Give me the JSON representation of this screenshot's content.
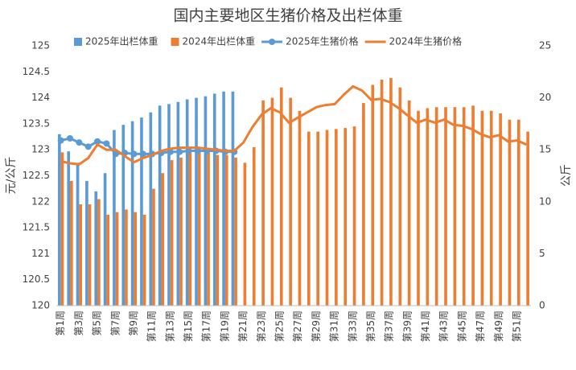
{
  "chart_data": {
    "type": "bar-line",
    "title": "国内主要地区生猪价格及出栏体重",
    "ylabel": "元/公斤",
    "y2label": "公斤",
    "categories": [
      "第1周",
      null,
      "第3周",
      null,
      "第5周",
      null,
      "第7周",
      null,
      "第9周",
      null,
      "第11周",
      null,
      "第13周",
      null,
      "第15周",
      null,
      "第17周",
      null,
      "第19周",
      null,
      "第21周",
      null,
      "第23周",
      null,
      "第25周",
      null,
      "第27周",
      null,
      "第29周",
      null,
      "第31周",
      null,
      "第33周",
      null,
      "第35周",
      null,
      "第37周",
      null,
      "第39周",
      null,
      "第41周",
      null,
      "第43周",
      null,
      "第45周",
      null,
      "第47周",
      null,
      "第49周",
      null,
      "第51周",
      null
    ],
    "ylim": [
      120,
      125
    ],
    "yticks": [
      120,
      120.5,
      121,
      121.5,
      122,
      122.5,
      123,
      123.5,
      124,
      124.5,
      125
    ],
    "y2lim": [
      0,
      25
    ],
    "y2ticks": [
      0,
      5,
      10,
      15,
      20,
      25
    ],
    "grid": false,
    "legend": "top",
    "series": [
      {
        "name": "2025年出栏体重",
        "kind": "bar",
        "color": "#5b9bd5",
        "values": [
          123.3,
          122.97,
          122.75,
          122.4,
          122.2,
          122.55,
          123.38,
          123.48,
          123.55,
          123.62,
          123.72,
          123.85,
          123.88,
          123.92,
          123.97,
          124.0,
          124.03,
          124.08,
          124.12,
          124.12,
          null,
          null,
          null,
          null,
          null,
          null,
          null,
          null,
          null,
          null,
          null,
          null,
          null,
          null,
          null,
          null,
          null,
          null,
          null,
          null,
          null,
          null,
          null,
          null,
          null,
          null,
          null,
          null,
          null,
          null,
          null,
          null
        ]
      },
      {
        "name": "2024年出栏体重",
        "kind": "bar",
        "color": "#ed7d31",
        "values": [
          122.95,
          122.4,
          121.95,
          121.95,
          122.05,
          121.75,
          121.8,
          121.85,
          121.8,
          121.75,
          122.25,
          122.55,
          122.8,
          122.85,
          122.95,
          123.0,
          122.95,
          122.9,
          122.9,
          122.85,
          122.75,
          123.05,
          123.95,
          124.0,
          124.2,
          124.0,
          123.75,
          123.35,
          123.35,
          123.38,
          123.4,
          123.42,
          123.45,
          123.9,
          124.25,
          124.35,
          124.38,
          124.2,
          123.95,
          123.75,
          123.8,
          123.82,
          123.82,
          123.82,
          123.82,
          123.85,
          123.75,
          123.75,
          123.7,
          123.58,
          123.58,
          123.35
        ]
      },
      {
        "name": "2025年生猪价格",
        "kind": "line",
        "axis": "y2",
        "markers": true,
        "color": "#5b9bd5",
        "values": [
          15.9,
          16.1,
          15.7,
          15.3,
          15.8,
          15.6,
          14.6,
          14.7,
          14.6,
          14.6,
          14.6,
          14.7,
          14.8,
          14.8,
          14.9,
          14.9,
          14.9,
          14.9,
          14.8,
          14.8,
          null,
          null,
          null,
          null,
          null,
          null,
          null,
          null,
          null,
          null,
          null,
          null,
          null,
          null,
          null,
          null,
          null,
          null,
          null,
          null,
          null,
          null,
          null,
          null,
          null,
          null,
          null,
          null,
          null,
          null,
          null,
          null
        ]
      },
      {
        "name": "2024年生猪价格",
        "kind": "line",
        "axis": "y2",
        "markers": false,
        "color": "#ed7d31",
        "values": [
          13.9,
          13.7,
          13.6,
          14.2,
          15.5,
          15.0,
          15.0,
          14.4,
          13.8,
          14.2,
          14.5,
          14.9,
          15.1,
          15.2,
          15.2,
          15.2,
          15.1,
          15.0,
          14.9,
          14.9,
          15.7,
          17.2,
          18.4,
          19.0,
          18.6,
          17.6,
          18.1,
          18.6,
          19.1,
          19.3,
          19.4,
          20.3,
          21.1,
          20.7,
          19.8,
          19.9,
          19.6,
          19.0,
          18.3,
          17.6,
          17.9,
          17.6,
          17.9,
          17.4,
          17.3,
          17.0,
          16.5,
          16.2,
          16.4,
          15.8,
          15.9,
          15.5
        ]
      }
    ]
  }
}
